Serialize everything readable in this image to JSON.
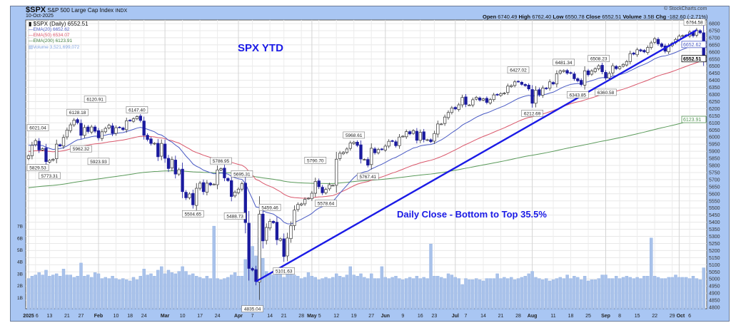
{
  "header": {
    "symbol": "$SPX",
    "name": "S&P 500 Large Cap Index",
    "exchange": "INDX",
    "date": "10-Oct-2025",
    "copyright": "© StockCharts.com",
    "ohlc": [
      {
        "k": "Open",
        "v": "6740.49"
      },
      {
        "k": "High",
        "v": "6762.40"
      },
      {
        "k": "Low",
        "v": "6550.78"
      },
      {
        "k": "Close",
        "v": "6552.51"
      },
      {
        "k": "Volume",
        "v": "3.5B"
      },
      {
        "k": "Chg",
        "v": "-182.60 (-2.71%)"
      }
    ]
  },
  "legend": {
    "price": "$SPX (Daily) 6552.51",
    "ema20": "EMA(20) 6652.62",
    "ema50": "EMA(50) 6534.07",
    "ema200": "EMA(200) 6123.91",
    "volume": "Volume 3,521,699,072"
  },
  "annotations_text": {
    "title": "SPX YTD",
    "note": "Daily Close -  Bottom to Top 35.5%"
  },
  "colors": {
    "frame": "#a9c6f3",
    "down": "#1a1a9e",
    "ema20": "#4a5bc4",
    "ema50": "#d9566a",
    "ema200": "#5a9a5a",
    "trend": "#1a1ae6",
    "volume": "#a9c2ea"
  },
  "chart_data": {
    "type": "candlestick",
    "title": "SPX YTD",
    "ylim": [
      4800,
      6800
    ],
    "yticks": [
      4800,
      4850,
      4900,
      4950,
      5000,
      5050,
      5100,
      5150,
      5200,
      5250,
      5300,
      5350,
      5400,
      5450,
      5500,
      5550,
      5600,
      5650,
      5700,
      5750,
      5800,
      5850,
      5900,
      5950,
      6000,
      6050,
      6100,
      6150,
      6200,
      6250,
      6300,
      6350,
      6400,
      6450,
      6500,
      6550,
      6600,
      6650,
      6700,
      6750,
      6800
    ],
    "volume_ticks": [
      "1B",
      "2B",
      "3B",
      "4B",
      "5B",
      "6B",
      "7B"
    ],
    "xticks": [
      {
        "i": 0,
        "t": "2025",
        "b": 1
      },
      {
        "i": 2,
        "t": "6"
      },
      {
        "i": 6,
        "t": "13"
      },
      {
        "i": 11,
        "t": "21"
      },
      {
        "i": 15,
        "t": "27"
      },
      {
        "i": 20,
        "t": "Feb",
        "b": 1
      },
      {
        "i": 25,
        "t": "10"
      },
      {
        "i": 29,
        "t": "18"
      },
      {
        "i": 33,
        "t": "24"
      },
      {
        "i": 39,
        "t": "Mar",
        "b": 1
      },
      {
        "i": 44,
        "t": "10"
      },
      {
        "i": 49,
        "t": "17"
      },
      {
        "i": 54,
        "t": "24"
      },
      {
        "i": 60,
        "t": "Apr",
        "b": 1
      },
      {
        "i": 64,
        "t": "7"
      },
      {
        "i": 69,
        "t": "14"
      },
      {
        "i": 73,
        "t": "21"
      },
      {
        "i": 78,
        "t": "28"
      },
      {
        "i": 81,
        "t": "May",
        "b": 1
      },
      {
        "i": 83,
        "t": "5"
      },
      {
        "i": 88,
        "t": "12"
      },
      {
        "i": 93,
        "t": "19"
      },
      {
        "i": 98,
        "t": "27"
      },
      {
        "i": 102,
        "t": "Jun",
        "b": 1
      },
      {
        "i": 107,
        "t": "9"
      },
      {
        "i": 112,
        "t": "16"
      },
      {
        "i": 116,
        "t": "23"
      },
      {
        "i": 122,
        "t": "Jul",
        "b": 1
      },
      {
        "i": 125,
        "t": "7"
      },
      {
        "i": 130,
        "t": "14"
      },
      {
        "i": 135,
        "t": "21"
      },
      {
        "i": 140,
        "t": "28"
      },
      {
        "i": 144,
        "t": "Aug",
        "b": 1
      },
      {
        "i": 150,
        "t": "11"
      },
      {
        "i": 155,
        "t": "18"
      },
      {
        "i": 160,
        "t": "25"
      },
      {
        "i": 165,
        "t": "Sep",
        "b": 1
      },
      {
        "i": 169,
        "t": "8"
      },
      {
        "i": 174,
        "t": "15"
      },
      {
        "i": 179,
        "t": "22"
      },
      {
        "i": 184,
        "t": "29"
      },
      {
        "i": 186,
        "t": "Oct",
        "b": 1
      },
      {
        "i": 189,
        "t": "6"
      }
    ],
    "close": [
      5868,
      5942,
      5975,
      5909,
      5918,
      5827,
      5836,
      5843,
      5950,
      5937,
      5997,
      6049,
      6086,
      6119,
      6101,
      6012,
      6067,
      6039,
      6071,
      6041,
      5994,
      6037,
      6061,
      6083,
      6026,
      6066,
      6068,
      6052,
      6115,
      6115,
      6129,
      6144,
      6117,
      6013,
      5983,
      5955,
      5956,
      5861,
      5955,
      5850,
      5778,
      5842,
      5739,
      5770,
      5615,
      5572,
      5599,
      5522,
      5639,
      5675,
      5615,
      5675,
      5663,
      5668,
      5768,
      5777,
      5712,
      5693,
      5581,
      5612,
      5633,
      5671,
      5397,
      5074,
      5062,
      4982,
      5457,
      5268,
      5363,
      5406,
      5396,
      5276,
      5283,
      5158,
      5288,
      5376,
      5485,
      5525,
      5529,
      5561,
      5569,
      5604,
      5687,
      5650,
      5607,
      5631,
      5664,
      5660,
      5844,
      5886,
      5892,
      5916,
      5958,
      5964,
      5941,
      5845,
      5842,
      5802,
      5921,
      5889,
      5912,
      5912,
      5936,
      5970,
      5971,
      5939,
      6000,
      6006,
      6038,
      6022,
      6045,
      5977,
      6033,
      5982,
      5981,
      5967,
      6025,
      6092,
      6092,
      6141,
      6173,
      6205,
      6198,
      6227,
      6279,
      6230,
      6226,
      6263,
      6280,
      6260,
      6269,
      6244,
      6264,
      6297,
      6297,
      6306,
      6310,
      6359,
      6363,
      6389,
      6390,
      6371,
      6362,
      6339,
      6238,
      6330,
      6299,
      6345,
      6340,
      6389,
      6374,
      6446,
      6466,
      6469,
      6450,
      6449,
      6411,
      6396,
      6370,
      6467,
      6439,
      6466,
      6481,
      6502,
      6460,
      6416,
      6448,
      6502,
      6482,
      6495,
      6512,
      6532,
      6588,
      6584,
      6615,
      6607,
      6600,
      6631,
      6664,
      6693,
      6657,
      6638,
      6605,
      6644,
      6661,
      6688,
      6711,
      6715,
      6716,
      6740,
      6714,
      6754,
      6735,
      6553
    ],
    "volume_b": [
      2.6,
      2.8,
      2.9,
      3.1,
      2.9,
      3.3,
      2.8,
      2.9,
      3.0,
      2.8,
      3.4,
      2.9,
      2.9,
      2.7,
      2.8,
      3.9,
      2.8,
      2.9,
      2.7,
      3.1,
      3.0,
      2.6,
      2.7,
      2.6,
      2.8,
      2.6,
      2.5,
      2.6,
      2.5,
      2.4,
      2.7,
      2.5,
      2.8,
      3.4,
      2.9,
      3.0,
      2.8,
      3.3,
      3.6,
      3.0,
      3.3,
      3.1,
      3.0,
      3.2,
      3.6,
      3.2,
      2.9,
      3.0,
      2.8,
      2.7,
      2.6,
      2.8,
      2.6,
      7.0,
      2.6,
      2.5,
      2.6,
      2.7,
      2.9,
      3.1,
      2.8,
      2.8,
      4.2,
      5.1,
      5.3,
      4.5,
      6.0,
      4.3,
      3.2,
      3.0,
      2.9,
      3.1,
      3.3,
      2.7,
      3.0,
      3.1,
      2.9,
      2.8,
      2.6,
      2.7,
      3.1,
      2.8,
      2.7,
      2.5,
      2.6,
      2.7,
      2.6,
      2.7,
      3.0,
      2.8,
      2.7,
      2.9,
      3.6,
      2.9,
      2.8,
      3.0,
      2.7,
      2.6,
      3.0,
      2.6,
      2.6,
      3.6,
      2.7,
      2.6,
      2.7,
      2.8,
      2.6,
      2.5,
      2.6,
      2.7,
      2.6,
      2.8,
      2.6,
      2.7,
      2.6,
      5.5,
      2.8,
      2.8,
      2.7,
      2.6,
      3.0,
      2.9,
      2.7,
      2.6,
      2.1,
      2.6,
      2.5,
      2.5,
      2.6,
      2.5,
      2.4,
      2.6,
      2.6,
      2.6,
      3.0,
      2.6,
      2.7,
      2.6,
      2.7,
      2.5,
      2.6,
      2.7,
      2.8,
      3.0,
      3.2,
      2.7,
      2.6,
      2.5,
      2.6,
      2.4,
      2.5,
      2.6,
      2.7,
      2.6,
      2.9,
      2.6,
      2.8,
      2.7,
      2.5,
      2.8,
      2.4,
      2.5,
      2.5,
      2.6,
      2.9,
      2.9,
      2.6,
      2.6,
      2.8,
      2.6,
      2.7,
      2.8,
      2.7,
      2.6,
      2.7,
      2.6,
      2.8,
      2.8,
      6.0,
      2.8,
      2.7,
      2.6,
      2.6,
      2.7,
      2.7,
      2.9,
      2.7,
      2.7,
      2.7,
      2.6,
      2.8,
      2.6,
      2.5,
      3.5
    ],
    "ema_seeds": {
      "ema20": 5950,
      "ema50": 5900,
      "ema200": 5640
    },
    "price_labels": [
      {
        "i": 2,
        "v": 6021.04,
        "t": "6021.04",
        "pos": "above"
      },
      {
        "i": 0,
        "v": 5829.53,
        "t": "5829.53",
        "pos": "below"
      },
      {
        "i": 6,
        "v": 5773.31,
        "t": "5773.31",
        "pos": "below"
      },
      {
        "i": 14,
        "v": 6128.18,
        "t": "6128.18",
        "pos": "above"
      },
      {
        "i": 15,
        "v": 5962.32,
        "t": "5962.32",
        "pos": "below"
      },
      {
        "i": 19,
        "v": 6120.91,
        "t": "6120.91",
        "pos": "above"
      },
      {
        "i": 20,
        "v": 5923.93,
        "t": "5923.93",
        "pos": "below"
      },
      {
        "i": 31,
        "v": 6147.4,
        "t": "6147.40",
        "pos": "above"
      },
      {
        "i": 47,
        "v": 5504.65,
        "t": "5504.65",
        "pos": "below"
      },
      {
        "i": 55,
        "v": 5786.95,
        "t": "5786.95",
        "pos": "above"
      },
      {
        "i": 59,
        "v": 5488.73,
        "t": "5488.73",
        "pos": "below"
      },
      {
        "i": 61,
        "v": 5695.31,
        "t": "5695.31",
        "pos": "above"
      },
      {
        "i": 64,
        "v": 4835.04,
        "t": "4835.04",
        "pos": "below"
      },
      {
        "i": 69,
        "v": 5459.46,
        "t": "5459.46",
        "pos": "above"
      },
      {
        "i": 73,
        "v": 5101.63,
        "t": "5101.63",
        "pos": "below"
      },
      {
        "i": 82,
        "v": 5790.7,
        "t": "5790.70",
        "pos": "above"
      },
      {
        "i": 85,
        "v": 5578.64,
        "t": "5578.64",
        "pos": "below"
      },
      {
        "i": 93,
        "v": 5968.61,
        "t": "5968.61",
        "pos": "above"
      },
      {
        "i": 97,
        "v": 5767.41,
        "t": "5767.41",
        "pos": "below"
      },
      {
        "i": 140,
        "v": 6427.02,
        "t": "6427.02",
        "pos": "above"
      },
      {
        "i": 144,
        "v": 6212.69,
        "t": "6212.69",
        "pos": "below"
      },
      {
        "i": 153,
        "v": 6481.34,
        "t": "6481.34",
        "pos": "above"
      },
      {
        "i": 157,
        "v": 6343.85,
        "t": "6343.85",
        "pos": "below"
      },
      {
        "i": 163,
        "v": 6508.23,
        "t": "6508.23",
        "pos": "above"
      },
      {
        "i": 165,
        "v": 6360.58,
        "t": "6360.58",
        "pos": "below"
      },
      {
        "i": 192,
        "v": 6764.58,
        "t": "6764.58",
        "pos": "above"
      }
    ],
    "right_labels": [
      {
        "v": 6652.62,
        "t": "6652.62",
        "c": "#4a5bc4"
      },
      {
        "v": 6552.51,
        "t": "6552.51",
        "c": "#000"
      },
      {
        "v": 6123.91,
        "t": "6123.91",
        "c": "#5a9a5a"
      }
    ],
    "trendline": {
      "from": {
        "i": 65,
        "v": 4982
      },
      "to": {
        "i": 191,
        "v": 6754
      },
      "label": "Daily Close -  Bottom to Top 35.5%"
    }
  }
}
